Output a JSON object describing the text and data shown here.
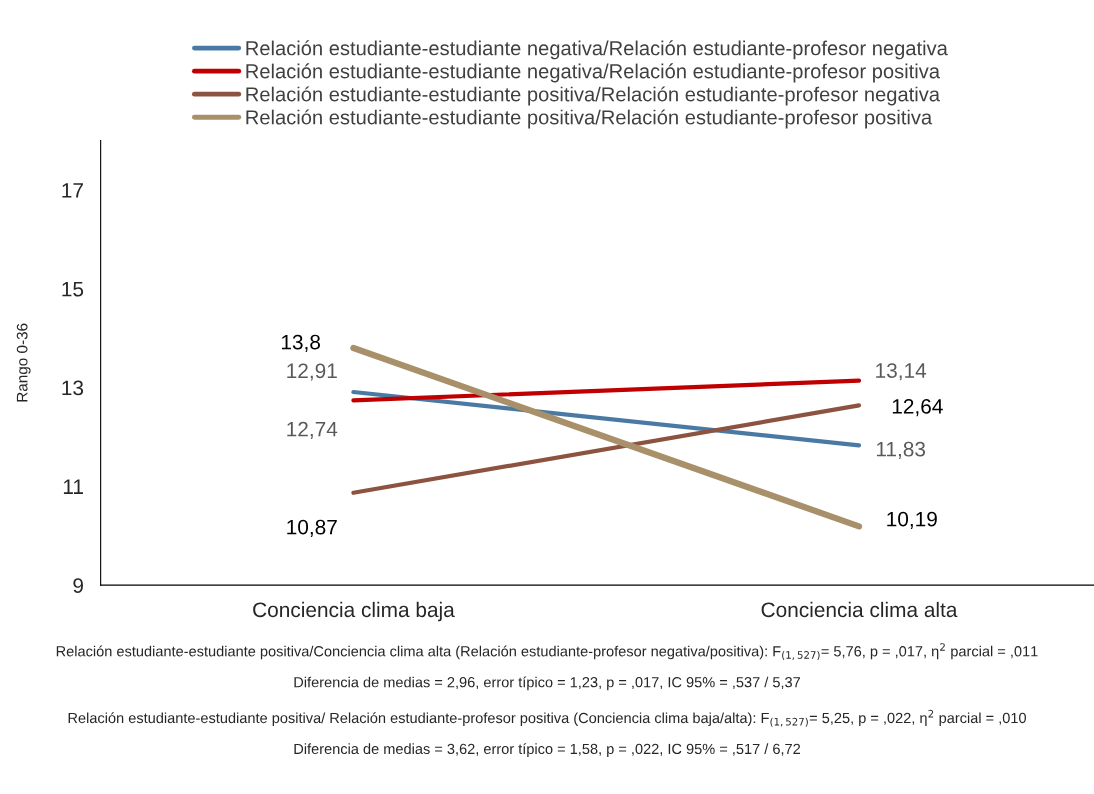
{
  "chart_data": {
    "type": "line",
    "ylabel": "Rango 0-36",
    "categories": [
      "Conciencia clima baja",
      "Conciencia clima alta"
    ],
    "series": [
      {
        "name": "Relación estudiante-estudiante negativa/Relación estudiante-profesor negativa",
        "color": "#4a7aa4",
        "values": [
          12.91,
          11.83
        ],
        "value_labels": [
          "12,91",
          "11,83"
        ]
      },
      {
        "name": "Relación estudiante-estudiante negativa/Relación estudiante-profesor positiva",
        "color": "#c00000",
        "values": [
          12.74,
          13.14
        ],
        "value_labels": [
          "12,74",
          "13,14"
        ]
      },
      {
        "name": "Relación estudiante-estudiante positiva/Relación estudiante-profesor negativa",
        "color": "#8c5340",
        "values": [
          10.87,
          12.64
        ],
        "value_labels": [
          "10,87",
          "12,64"
        ]
      },
      {
        "name": "Relación estudiante-estudiante positiva/Relación estudiante-profesor positiva",
        "color": "#a8916a",
        "values": [
          13.8,
          10.19
        ],
        "value_labels": [
          "13,8",
          "10,19"
        ]
      }
    ],
    "ylim": [
      9,
      18
    ],
    "yticks": [
      9,
      11,
      13,
      15,
      17
    ],
    "grid": false,
    "legend": "top",
    "marker": "none",
    "line_style": "solid",
    "annotations": [
      "Relación estudiante-estudiante positiva/Conciencia clima alta (Relación estudiante-profesor negativa/positiva): F$_{(1,527)}$= 5,76, p = ,017, η$^{2}$ parcial = ,011",
      "Diferencia de medias = 2,96, error típico = 1,23, p = ,017, IC 95% = ,537 / 5,37",
      "Relación estudiante-estudiante positiva/ Relación estudiante-profesor positiva (Conciencia clima baja/alta): F$_{(1,527)}$= 5,25, p = ,022, η$^{2}$ parcial = ,010",
      "Diferencia de medias = 3,62, error típico = 1,58, p = ,022, IC 95% = ,517 / 6,72"
    ]
  }
}
